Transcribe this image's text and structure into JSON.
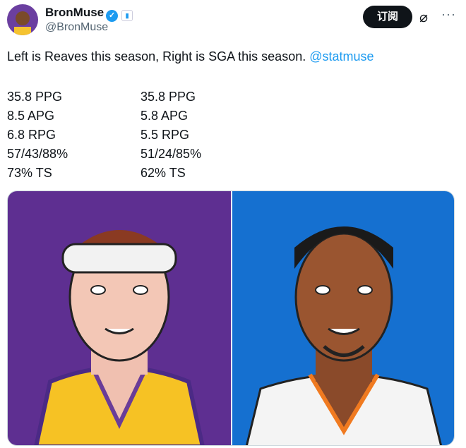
{
  "author": {
    "name": "BronMuse",
    "handle": "@BronMuse",
    "verified_icon": "verified-badge-icon",
    "affiliate_icon": "chart-icon"
  },
  "actions": {
    "subscribe_label": "订阅",
    "grok_icon": "grok-icon",
    "more_icon": "more-icon"
  },
  "tweet": {
    "text": "Left is Reaves this season, Right is SGA this season.",
    "mention": "@statmuse"
  },
  "stats": {
    "left": [
      "35.8 PPG",
      "8.5 APG",
      "6.8 RPG",
      "57/43/88%",
      "73% TS"
    ],
    "right": [
      "35.8 PPG",
      "5.8 APG",
      "5.5 RPG",
      "51/24/85%",
      "62% TS"
    ]
  },
  "media": {
    "left_bg": "#5e2f91",
    "right_bg": "#1570d0"
  }
}
